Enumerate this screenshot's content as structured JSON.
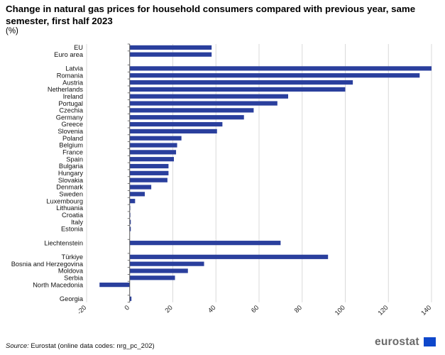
{
  "header": {
    "title": "Change in natural gas prices for household consumers compared with previous year, same semester, first half 2023",
    "unit": "(%)"
  },
  "footer": {
    "source_label": "Source:",
    "source_text": "Eurostat (online data codes: nrg_pc_202)",
    "logo_text": "eurostat"
  },
  "colors": {
    "bar": "#2a3f9d",
    "grid": "#d9d9d9",
    "axis": "#555555",
    "logo": "#6a6a6a"
  },
  "chart_data": {
    "type": "bar",
    "orientation": "horizontal",
    "xlim": [
      -20,
      140
    ],
    "xticks": [
      -20,
      0,
      20,
      40,
      60,
      80,
      100,
      120,
      140
    ],
    "grid": "vertical",
    "groups": [
      [
        {
          "category": "EU",
          "value": 38.0
        },
        {
          "category": "Euro area",
          "value": 38.0
        }
      ],
      [
        {
          "category": "Latvia",
          "value": 140.0
        },
        {
          "category": "Romania",
          "value": 134.5
        },
        {
          "category": "Austria",
          "value": 103.5
        },
        {
          "category": "Netherlands",
          "value": 100.0
        },
        {
          "category": "Ireland",
          "value": 73.5
        },
        {
          "category": "Portugal",
          "value": 68.5
        },
        {
          "category": "Czechia",
          "value": 57.5
        },
        {
          "category": "Germany",
          "value": 53.0
        },
        {
          "category": "Greece",
          "value": 43.0
        },
        {
          "category": "Slovenia",
          "value": 40.5
        },
        {
          "category": "Poland",
          "value": 24.0
        },
        {
          "category": "Belgium",
          "value": 22.0
        },
        {
          "category": "France",
          "value": 21.5
        },
        {
          "category": "Spain",
          "value": 20.5
        },
        {
          "category": "Bulgaria",
          "value": 18.0
        },
        {
          "category": "Hungary",
          "value": 18.0
        },
        {
          "category": "Slovakia",
          "value": 17.5
        },
        {
          "category": "Denmark",
          "value": 10.0
        },
        {
          "category": "Sweden",
          "value": 7.0
        },
        {
          "category": "Luxembourg",
          "value": 2.5
        },
        {
          "category": "Lithuania",
          "value": 0.2
        },
        {
          "category": "Croatia",
          "value": 0.3
        },
        {
          "category": "Italy",
          "value": 0.5
        },
        {
          "category": "Estonia",
          "value": 0.5
        }
      ],
      [
        {
          "category": "Liechtenstein",
          "value": 70.0
        }
      ],
      [
        {
          "category": "Türkiye",
          "value": 92.0
        },
        {
          "category": "Bosnia and Herzegovina",
          "value": 34.5
        },
        {
          "category": "Moldova",
          "value": 27.0
        },
        {
          "category": "Serbia",
          "value": 21.0
        },
        {
          "category": "North Macedonia",
          "value": -14.0
        }
      ],
      [
        {
          "category": "Georgia",
          "value": 0.8
        }
      ]
    ]
  }
}
